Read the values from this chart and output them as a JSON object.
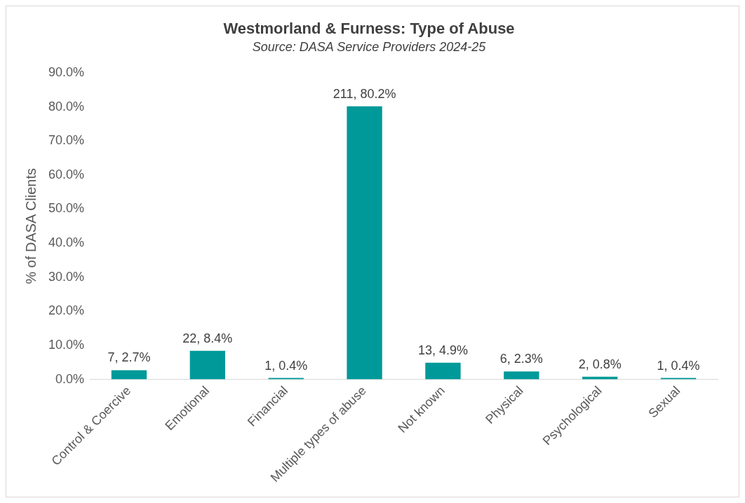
{
  "chart_data": {
    "type": "bar",
    "title": "Westmorland & Furness: Type of Abuse",
    "subtitle": "Source: DASA Service Providers 2024-25",
    "ylabel": "% of DASA Clients",
    "categories": [
      "Control & Coercive",
      "Emotional",
      "Financial",
      "Multiple types of abuse",
      "Not known",
      "Physical",
      "Psychological",
      "Sexual"
    ],
    "values": [
      2.7,
      8.4,
      0.4,
      80.2,
      4.9,
      2.3,
      0.8,
      0.4
    ],
    "value_labels": [
      "7, 2.7%",
      "22, 8.4%",
      "1, 0.4%",
      "211, 80.2%",
      "13, 4.9%",
      "6, 2.3%",
      "2, 0.8%",
      "1, 0.4%"
    ],
    "color": "#009999",
    "ylim": [
      0,
      90
    ],
    "yticks": [
      {
        "value": 0,
        "label": "0.0%"
      },
      {
        "value": 10,
        "label": "10.0%"
      },
      {
        "value": 20,
        "label": "20.0%"
      },
      {
        "value": 30,
        "label": "30.0%"
      },
      {
        "value": 40,
        "label": "40.0%"
      },
      {
        "value": 50,
        "label": "50.0%"
      },
      {
        "value": 60,
        "label": "60.0%"
      },
      {
        "value": 70,
        "label": "70.0%"
      },
      {
        "value": 80,
        "label": "80.0%"
      },
      {
        "value": 90,
        "label": "90.0%"
      }
    ],
    "grid": false,
    "legend": false
  }
}
